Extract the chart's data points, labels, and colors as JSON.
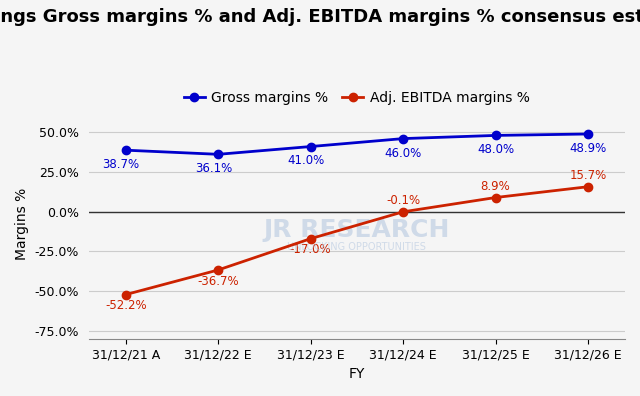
{
  "title": "DraftKings Gross margins % and Adj. EBITDA margins % consensus estimates",
  "xlabel": "FY",
  "ylabel": "Margins %",
  "categories": [
    "31/12/21 A",
    "31/12/22 E",
    "31/12/23 E",
    "31/12/24 E",
    "31/12/25 E",
    "31/12/26 E"
  ],
  "gross_margins": [
    38.7,
    36.1,
    41.0,
    46.0,
    48.0,
    48.9
  ],
  "ebitda_margins": [
    -52.2,
    -36.7,
    -17.0,
    -0.1,
    8.9,
    15.7
  ],
  "gross_color": "#0000cc",
  "ebitda_color": "#cc2200",
  "gross_label": "Gross margins %",
  "ebitda_label": "Adj. EBITDA margins %",
  "ylim": [
    -80,
    65
  ],
  "yticks": [
    -75.0,
    -50.0,
    -25.0,
    0.0,
    25.0,
    50.0
  ],
  "background_color": "#f5f5f5",
  "grid_color": "#cccccc",
  "watermark_line1": "JR RESEARCH",
  "watermark_line2": "UNLOCKING OPPORTUNITIES",
  "title_fontsize": 13,
  "label_fontsize": 10,
  "tick_fontsize": 9,
  "legend_fontsize": 10,
  "annot_fontsize": 8.5
}
